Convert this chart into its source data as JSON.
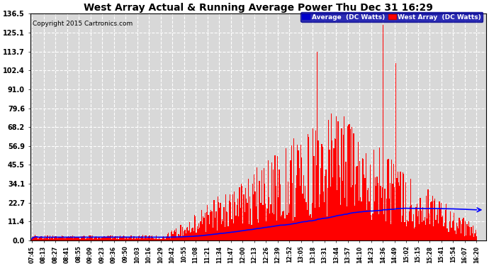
{
  "title": "West Array Actual & Running Average Power Thu Dec 31 16:29",
  "copyright": "Copyright 2015 Cartronics.com",
  "legend_avg": "Average  (DC Watts)",
  "legend_west": "West Array  (DC Watts)",
  "ymax": 136.5,
  "ymin": 0.0,
  "yticks": [
    0.0,
    11.4,
    22.7,
    34.1,
    45.5,
    56.9,
    68.2,
    79.6,
    91.0,
    102.4,
    113.7,
    125.1,
    136.5
  ],
  "ytick_labels": [
    "0.0",
    "11.4",
    "22.7",
    "34.1",
    "45.5",
    "56.9",
    "68.2",
    "79.6",
    "91.0",
    "102.4",
    "113.7",
    "125.1",
    "136.5"
  ],
  "bg_color": "#ffffff",
  "plot_bg_color": "#d8d8d8",
  "grid_color": "#ffffff",
  "bar_color": "#ff0000",
  "avg_line_color": "#0000ff",
  "title_color": "#000000",
  "copyright_color": "#000000",
  "time_labels": [
    "07:45",
    "08:13",
    "08:27",
    "08:41",
    "08:55",
    "09:09",
    "09:23",
    "09:36",
    "09:50",
    "10:03",
    "10:16",
    "10:29",
    "10:42",
    "10:55",
    "11:08",
    "11:21",
    "11:34",
    "11:47",
    "12:00",
    "12:13",
    "12:26",
    "12:39",
    "12:52",
    "13:05",
    "13:18",
    "13:31",
    "13:44",
    "13:57",
    "14:10",
    "14:23",
    "14:36",
    "14:49",
    "15:02",
    "15:15",
    "15:28",
    "15:41",
    "15:54",
    "16:07",
    "16:20"
  ]
}
